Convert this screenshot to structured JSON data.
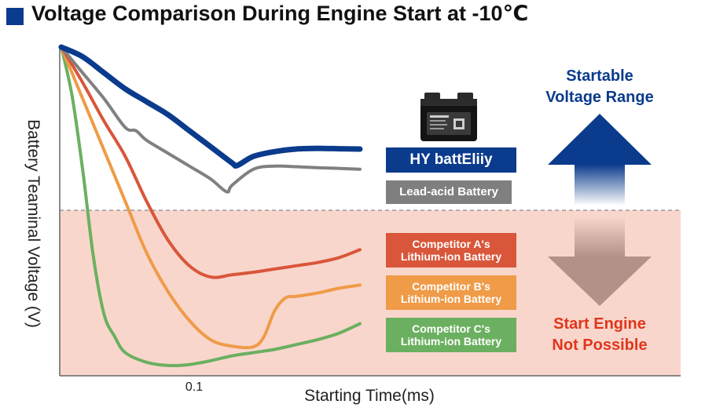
{
  "chart_data": {
    "type": "line",
    "title": "Voltage Comparison During Engine Start at -10℃",
    "xlabel": "Starting Time(ms)",
    "ylabel": "Battery Teaminal Voltage (V)",
    "x_ticks": [
      "0.1"
    ],
    "xlim": [
      0,
      0.35
    ],
    "ylim": [
      0,
      1
    ],
    "threshold": 0.5,
    "series": [
      {
        "name": "HY battEliiy",
        "color": "#0a3b8c",
        "x": [
          0,
          0.02,
          0.04,
          0.06,
          0.08,
          0.1,
          0.12,
          0.14,
          0.16,
          0.165,
          0.18,
          0.2,
          0.22,
          0.24,
          0.26,
          0.28
        ],
        "y": [
          1.0,
          0.97,
          0.92,
          0.87,
          0.83,
          0.79,
          0.74,
          0.69,
          0.64,
          0.632,
          0.66,
          0.675,
          0.683,
          0.685,
          0.684,
          0.683
        ]
      },
      {
        "name": "Lead-acid Battery",
        "color": "#808080",
        "x": [
          0,
          0.02,
          0.04,
          0.06,
          0.07,
          0.08,
          0.1,
          0.12,
          0.14,
          0.155,
          0.16,
          0.18,
          0.2,
          0.22,
          0.24,
          0.26,
          0.28
        ],
        "y": [
          1.0,
          0.92,
          0.84,
          0.75,
          0.74,
          0.71,
          0.67,
          0.63,
          0.59,
          0.55,
          0.57,
          0.62,
          0.63,
          0.628,
          0.625,
          0.623,
          0.62
        ]
      },
      {
        "name": "Competitor A's Lithium-ion Battery",
        "color": "#d9563a",
        "x": [
          0,
          0.02,
          0.04,
          0.06,
          0.08,
          0.1,
          0.12,
          0.14,
          0.16,
          0.18,
          0.2,
          0.22,
          0.24,
          0.26,
          0.28
        ],
        "y": [
          1.0,
          0.89,
          0.77,
          0.66,
          0.52,
          0.4,
          0.32,
          0.285,
          0.292,
          0.3,
          0.31,
          0.32,
          0.33,
          0.345,
          0.37
        ]
      },
      {
        "name": "Competitor B's Lithium-ion Battery",
        "color": "#ef9b48",
        "x": [
          0,
          0.02,
          0.04,
          0.06,
          0.08,
          0.1,
          0.12,
          0.14,
          0.16,
          0.18,
          0.19,
          0.2,
          0.21,
          0.22,
          0.24,
          0.26,
          0.28
        ],
        "y": [
          1.0,
          0.84,
          0.68,
          0.52,
          0.36,
          0.24,
          0.15,
          0.09,
          0.07,
          0.068,
          0.1,
          0.18,
          0.22,
          0.225,
          0.235,
          0.25,
          0.26
        ]
      },
      {
        "name": "Competitor C's Lithium-ion Battery",
        "color": "#6bb060",
        "x": [
          0,
          0.01,
          0.02,
          0.03,
          0.04,
          0.05,
          0.06,
          0.08,
          0.1,
          0.12,
          0.14,
          0.16,
          0.18,
          0.2,
          0.22,
          0.24,
          0.26,
          0.28
        ],
        "y": [
          1.0,
          0.85,
          0.62,
          0.35,
          0.17,
          0.1,
          0.05,
          0.02,
          0.01,
          0.013,
          0.025,
          0.04,
          0.05,
          0.06,
          0.075,
          0.09,
          0.11,
          0.14
        ]
      }
    ],
    "legend": [
      {
        "lines": [
          "HY battEliiy"
        ],
        "color": "#0a3b8c"
      },
      {
        "lines": [
          "Lead-acid Battery"
        ],
        "color": "#7f7f7f"
      },
      {
        "lines": [
          "Competitor A's",
          "Lithium-ion Battery"
        ],
        "color": "#d9563a"
      },
      {
        "lines": [
          "Competitor B's",
          "Lithium-ion Battery"
        ],
        "color": "#ef9b48"
      },
      {
        "lines": [
          "Competitor C's",
          "Lithium-ion Battery"
        ],
        "color": "#6bb060"
      }
    ],
    "zones": {
      "startable": {
        "lines": [
          "Startable",
          "Voltage Range"
        ],
        "color": "#0a3b8c"
      },
      "not_possible": {
        "lines": [
          "Start Engine",
          "Not Possible"
        ],
        "color": "#e0361c"
      },
      "not_possible_fill": "#f9d6cc"
    },
    "grid": false,
    "legend_placement": "right"
  }
}
